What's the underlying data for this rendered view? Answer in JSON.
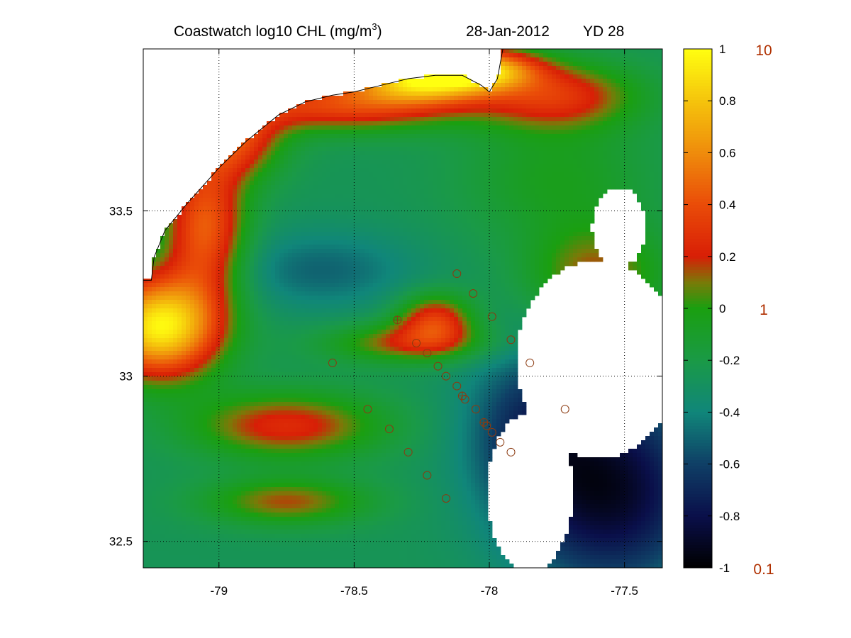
{
  "title": {
    "main": "Coastwatch  log10  CHL (mg/m",
    "superscript": "3",
    "close": ")",
    "date": "28-Jan-2012",
    "yearday": "YD 28"
  },
  "colors": {
    "frame": "#000000",
    "grid": "#000000",
    "coastline": "#000000",
    "station_marker": "#8b3a10",
    "reference_label": "#b03000",
    "land_or_no_data": "#ffffff"
  },
  "chart_data": {
    "type": "heatmap",
    "variable": "log10 chlorophyll-a",
    "units": "mg/m3",
    "xlim": [
      -79.28,
      -77.36
    ],
    "ylim": [
      32.42,
      33.99
    ],
    "x_ticks": [
      -79,
      -78.5,
      -78,
      -77.5
    ],
    "x_tick_labels": [
      "-79",
      "-78.5",
      "-78",
      "-77.5"
    ],
    "y_ticks": [
      32.5,
      33,
      33.5
    ],
    "y_tick_labels": [
      "32.5",
      "33",
      "33.5"
    ],
    "grid": true,
    "colorbar": {
      "range": [
        -1,
        1
      ],
      "ticks": [
        1,
        0.8,
        0.6,
        0.4,
        0.2,
        0,
        -0.2,
        -0.4,
        -0.6,
        -0.8,
        -1
      ],
      "tick_labels": [
        "1",
        "0.8",
        "0.6",
        "0.4",
        "0.2",
        "0",
        "-0.2",
        "-0.4",
        "-0.6",
        "-0.8",
        "-1"
      ],
      "stops": [
        {
          "v": -1.0,
          "color": "#000000"
        },
        {
          "v": -0.8,
          "color": "#0a0f4a"
        },
        {
          "v": -0.6,
          "color": "#0f3f66"
        },
        {
          "v": -0.4,
          "color": "#10867a"
        },
        {
          "v": -0.2,
          "color": "#1a9a46"
        },
        {
          "v": 0.0,
          "color": "#1a9f10"
        },
        {
          "v": 0.1,
          "color": "#7a7a08"
        },
        {
          "v": 0.2,
          "color": "#d81e06"
        },
        {
          "v": 0.4,
          "color": "#ea4c08"
        },
        {
          "v": 0.6,
          "color": "#ef8c0c"
        },
        {
          "v": 0.8,
          "color": "#f5c40c"
        },
        {
          "v": 1.0,
          "color": "#ffff10"
        }
      ],
      "reference_values": [
        {
          "log10": 1,
          "label": "10"
        },
        {
          "log10": 0,
          "label": "1"
        },
        {
          "log10": -1,
          "label": "0.1"
        }
      ]
    },
    "fields": {
      "base_value": -0.26,
      "blobs": [
        {
          "lon": -79.22,
          "lat": 33.15,
          "rx": 0.22,
          "ry": 0.15,
          "v": 0.95
        },
        {
          "lon": -79.05,
          "lat": 33.45,
          "rx": 0.15,
          "ry": 0.22,
          "v": 0.45
        },
        {
          "lon": -78.95,
          "lat": 33.72,
          "rx": 0.18,
          "ry": 0.12,
          "v": 0.35
        },
        {
          "lon": -78.55,
          "lat": 33.82,
          "rx": 0.45,
          "ry": 0.08,
          "v": 0.35
        },
        {
          "lon": -78.25,
          "lat": 33.9,
          "rx": 0.25,
          "ry": 0.07,
          "v": 0.75
        },
        {
          "lon": -78.02,
          "lat": 33.93,
          "rx": 0.2,
          "ry": 0.06,
          "v": 0.55
        },
        {
          "lon": -77.75,
          "lat": 33.85,
          "rx": 0.3,
          "ry": 0.1,
          "v": 0.25
        },
        {
          "lon": -78.75,
          "lat": 32.85,
          "rx": 0.35,
          "ry": 0.1,
          "v": 0.25
        },
        {
          "lon": -78.2,
          "lat": 33.17,
          "rx": 0.14,
          "ry": 0.08,
          "v": 0.3
        },
        {
          "lon": -78.3,
          "lat": 33.1,
          "rx": 0.3,
          "ry": 0.06,
          "v": 0.15
        },
        {
          "lon": -78.75,
          "lat": 32.62,
          "rx": 0.3,
          "ry": 0.07,
          "v": 0.15
        },
        {
          "lon": -78.62,
          "lat": 33.32,
          "rx": 0.35,
          "ry": 0.12,
          "v": -0.5
        },
        {
          "lon": -77.55,
          "lat": 32.65,
          "rx": 0.35,
          "ry": 0.3,
          "v": -0.9
        },
        {
          "lon": -77.85,
          "lat": 32.85,
          "rx": 0.25,
          "ry": 0.25,
          "v": -0.6
        },
        {
          "lon": -77.75,
          "lat": 33.6,
          "rx": 0.35,
          "ry": 0.2,
          "v": -0.05
        },
        {
          "lon": -77.6,
          "lat": 33.3,
          "rx": 0.25,
          "ry": 0.15,
          "v": 0.15
        }
      ],
      "no_data_areas": [
        {
          "lon": -77.6,
          "lat": 33.05,
          "rx": 0.3,
          "ry": 0.3
        },
        {
          "lon": -77.52,
          "lat": 33.45,
          "rx": 0.1,
          "ry": 0.12
        },
        {
          "lon": -77.85,
          "lat": 32.65,
          "rx": 0.16,
          "ry": 0.24
        }
      ]
    },
    "coastline": [
      [
        -79.28,
        33.29
      ],
      [
        -79.25,
        33.29
      ],
      [
        -79.24,
        33.36
      ],
      [
        -79.2,
        33.44
      ],
      [
        -79.12,
        33.52
      ],
      [
        -79.0,
        33.63
      ],
      [
        -78.9,
        33.71
      ],
      [
        -78.78,
        33.79
      ],
      [
        -78.68,
        33.83
      ],
      [
        -78.58,
        33.85
      ],
      [
        -78.5,
        33.86
      ],
      [
        -78.4,
        33.88
      ],
      [
        -78.3,
        33.9
      ],
      [
        -78.2,
        33.91
      ],
      [
        -78.1,
        33.91
      ],
      [
        -78.03,
        33.88
      ],
      [
        -78.0,
        33.86
      ],
      [
        -77.97,
        33.9
      ],
      [
        -77.95,
        33.99
      ]
    ],
    "stations": [
      {
        "lon": -78.12,
        "lat": 33.31
      },
      {
        "lon": -78.06,
        "lat": 33.25
      },
      {
        "lon": -77.99,
        "lat": 33.18
      },
      {
        "lon": -77.92,
        "lat": 33.11
      },
      {
        "lon": -77.85,
        "lat": 33.04
      },
      {
        "lon": -77.72,
        "lat": 32.9
      },
      {
        "lon": -78.34,
        "lat": 33.17,
        "cross": true
      },
      {
        "lon": -78.27,
        "lat": 33.1
      },
      {
        "lon": -78.23,
        "lat": 33.07
      },
      {
        "lon": -78.19,
        "lat": 33.03
      },
      {
        "lon": -78.16,
        "lat": 33.0
      },
      {
        "lon": -78.12,
        "lat": 32.97
      },
      {
        "lon": -78.1,
        "lat": 32.94,
        "cross": true
      },
      {
        "lon": -78.09,
        "lat": 32.93
      },
      {
        "lon": -78.05,
        "lat": 32.9
      },
      {
        "lon": -78.02,
        "lat": 32.86,
        "cross": true
      },
      {
        "lon": -78.01,
        "lat": 32.85
      },
      {
        "lon": -77.99,
        "lat": 32.83
      },
      {
        "lon": -77.96,
        "lat": 32.8
      },
      {
        "lon": -77.92,
        "lat": 32.77
      },
      {
        "lon": -78.58,
        "lat": 33.04
      },
      {
        "lon": -78.45,
        "lat": 32.9
      },
      {
        "lon": -78.37,
        "lat": 32.84
      },
      {
        "lon": -78.3,
        "lat": 32.77
      },
      {
        "lon": -78.23,
        "lat": 32.7
      },
      {
        "lon": -78.16,
        "lat": 32.63
      }
    ]
  }
}
